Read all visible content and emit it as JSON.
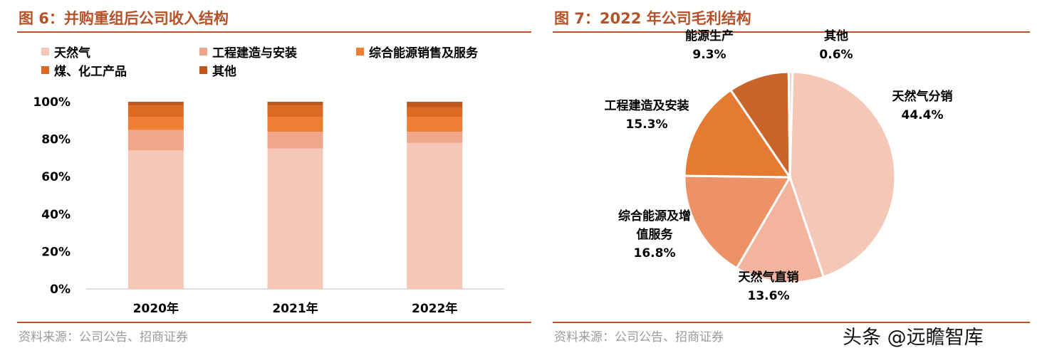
{
  "left": {
    "title": "图 6：并购重组后公司收入结构",
    "source": "资料来源：公司公告、招商证券"
  },
  "right": {
    "title": "图 7：2022 年公司毛利结构",
    "source": "资料来源：公司公告、招商证券"
  },
  "watermark": "头条 @远瞻智库",
  "colors": {
    "accent": "#b4522a",
    "natural_gas": "#f4c7b6",
    "engineering": "#f0a68a",
    "integrated_energy": "#ef7e35",
    "coal_chem": "#dd6a23",
    "other": "#c0581d"
  },
  "chart_data": [
    {
      "type": "bar",
      "stacked": true,
      "categories": [
        "2020年",
        "2021年",
        "2022年"
      ],
      "ylim": [
        0,
        100
      ],
      "yticks": [
        "0%",
        "20%",
        "40%",
        "60%",
        "80%",
        "100%"
      ],
      "series": [
        {
          "name": "天然气",
          "values": [
            74,
            75,
            78
          ],
          "color": "#f4c7b6"
        },
        {
          "name": "工程建造与安装",
          "values": [
            11,
            9,
            6
          ],
          "color": "#f0a68a"
        },
        {
          "name": "综合能源销售及服务",
          "values": [
            7,
            8,
            8
          ],
          "color": "#ef7e35"
        },
        {
          "name": "煤、化工产品",
          "values": [
            6,
            6,
            5
          ],
          "color": "#dd6a23"
        },
        {
          "name": "其他",
          "values": [
            2,
            2,
            3
          ],
          "color": "#c0581d"
        }
      ]
    },
    {
      "type": "pie",
      "slices": [
        {
          "name": "天然气分销",
          "value": 44.4,
          "label": "44.4%",
          "color": "#f4c7b6"
        },
        {
          "name": "天然气直销",
          "value": 13.6,
          "label": "13.6%",
          "color": "#f2b49c"
        },
        {
          "name": "综合能源及增值服务",
          "value": 16.8,
          "label": "16.8%",
          "color": "#ec9266"
        },
        {
          "name": "工程建造及安装",
          "value": 15.3,
          "label": "15.3%",
          "color": "#e57a32"
        },
        {
          "name": "能源生产",
          "value": 9.3,
          "label": "9.3%",
          "color": "#c7652b"
        },
        {
          "name": "其他",
          "value": 0.6,
          "label": "0.6%",
          "color": "#f4d3c6"
        }
      ]
    }
  ]
}
